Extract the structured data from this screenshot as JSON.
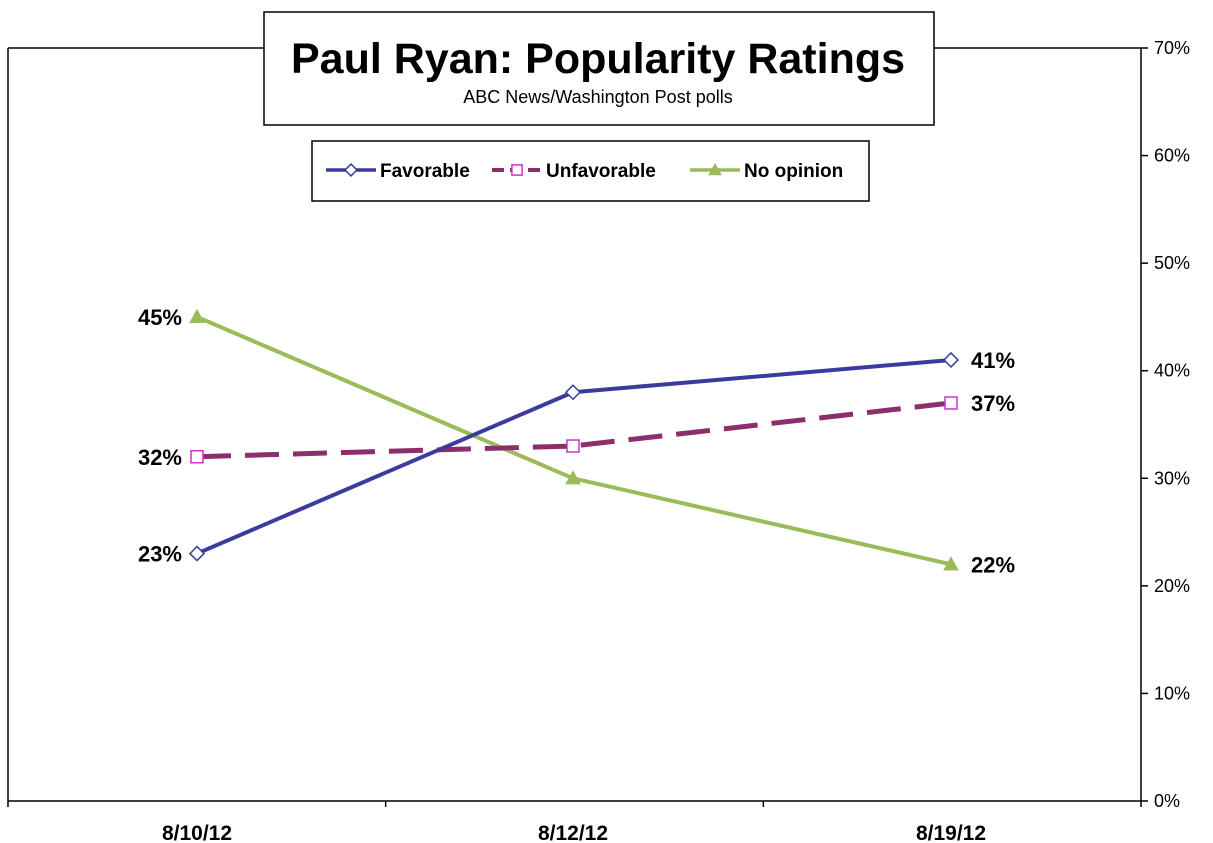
{
  "chart_data": {
    "type": "line",
    "title": "Paul Ryan: Popularity Ratings",
    "subtitle": "ABC News/Washington  Post polls",
    "x": [
      "8/10/12",
      "8/12/12",
      "8/19/12"
    ],
    "ylim": [
      0,
      70
    ],
    "y_ticks": [
      0,
      10,
      20,
      30,
      40,
      50,
      60,
      70
    ],
    "y_tick_labels": [
      "0%",
      "10%",
      "20%",
      "30%",
      "40%",
      "50%",
      "60%",
      "70%"
    ],
    "y_axis_side": "right",
    "grid": false,
    "legend_placement": "top-center",
    "series": [
      {
        "name": "Favorable",
        "values": [
          23,
          38,
          41
        ],
        "color": "#3b3b9e",
        "marker": "diamond-open",
        "dash": "solid",
        "data_labels": [
          "23%",
          "",
          "41%"
        ]
      },
      {
        "name": "Unfavorable",
        "values": [
          32,
          33,
          37
        ],
        "color": "#8b2e6b",
        "marker_color": "#cc33cc",
        "marker": "square-open",
        "dash": "dashed",
        "data_labels": [
          "32%",
          "",
          "37%"
        ]
      },
      {
        "name": "No opinion",
        "values": [
          45,
          30,
          22
        ],
        "color": "#9bbb59",
        "marker": "triangle-filled",
        "dash": "solid",
        "data_labels": [
          "45%",
          "",
          "22%"
        ]
      }
    ]
  }
}
